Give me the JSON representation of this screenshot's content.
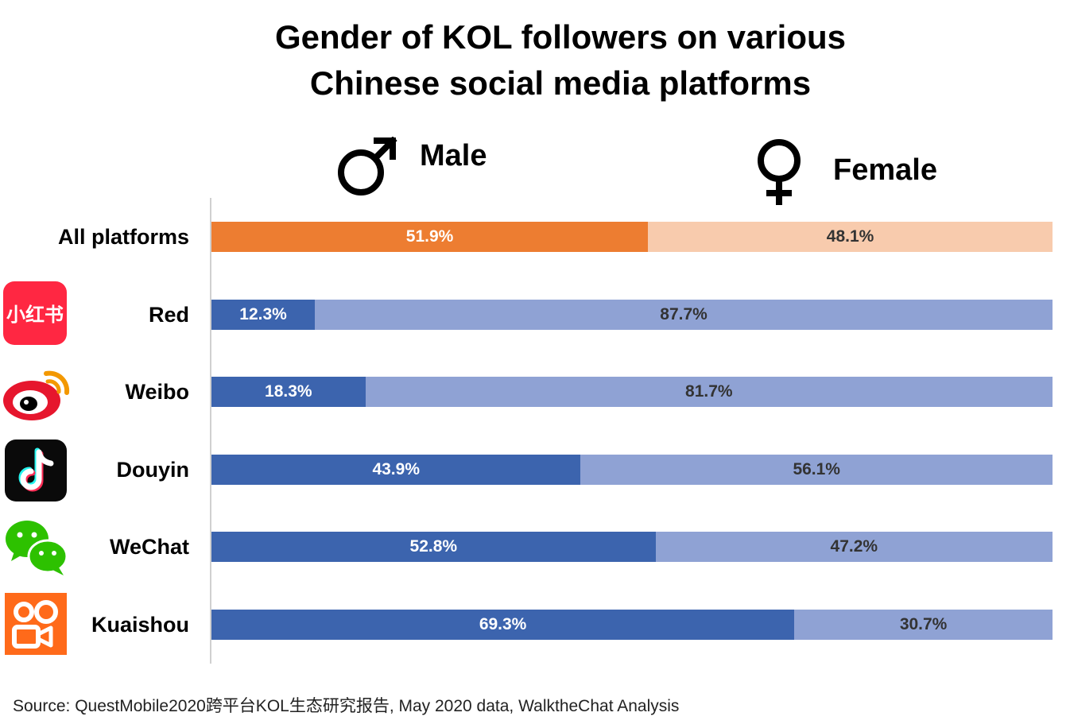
{
  "title_lines": [
    "Gender of KOL followers on various",
    "Chinese social media platforms"
  ],
  "legend": {
    "male": {
      "label": "Male",
      "icon": "male-symbol-icon"
    },
    "female": {
      "label": "Female",
      "icon": "female-symbol-icon"
    }
  },
  "colors": {
    "highlight_male": "#ed7d31",
    "highlight_female": "#f8cbad",
    "male": "#3c64ae",
    "female": "#8fa2d4",
    "label_on_dark": "#ffffff",
    "label_on_light": "#333333"
  },
  "chart_data": {
    "type": "bar",
    "orientation": "horizontal",
    "stacked": "100%",
    "categories": [
      "All platforms",
      "Red",
      "Weibo",
      "Douyin",
      "WeChat",
      "Kuaishou"
    ],
    "series": [
      {
        "name": "Male",
        "values": [
          51.9,
          12.3,
          18.3,
          43.9,
          52.8,
          69.3
        ],
        "labels": [
          "51.9%",
          "12.3%",
          "18.3%",
          "43.9%",
          "52.8%",
          "69.3%"
        ]
      },
      {
        "name": "Female",
        "values": [
          48.1,
          87.7,
          81.7,
          56.1,
          47.2,
          30.7
        ],
        "labels": [
          "48.1%",
          "87.7%",
          "81.7%",
          "56.1%",
          "47.2%",
          "30.7%"
        ]
      }
    ],
    "xlim": [
      0,
      100
    ],
    "highlighted_category": "All platforms",
    "legend_position": "top"
  },
  "platform_icons": [
    null,
    "xiaohongshu-logo-icon",
    "weibo-logo-icon",
    "douyin-logo-icon",
    "wechat-logo-icon",
    "kuaishou-logo-icon"
  ],
  "red_logo_text": "小红书",
  "source": "Source: QuestMobile2020跨平台KOL生态研究报告, May 2020 data, WalktheChat Analysis"
}
